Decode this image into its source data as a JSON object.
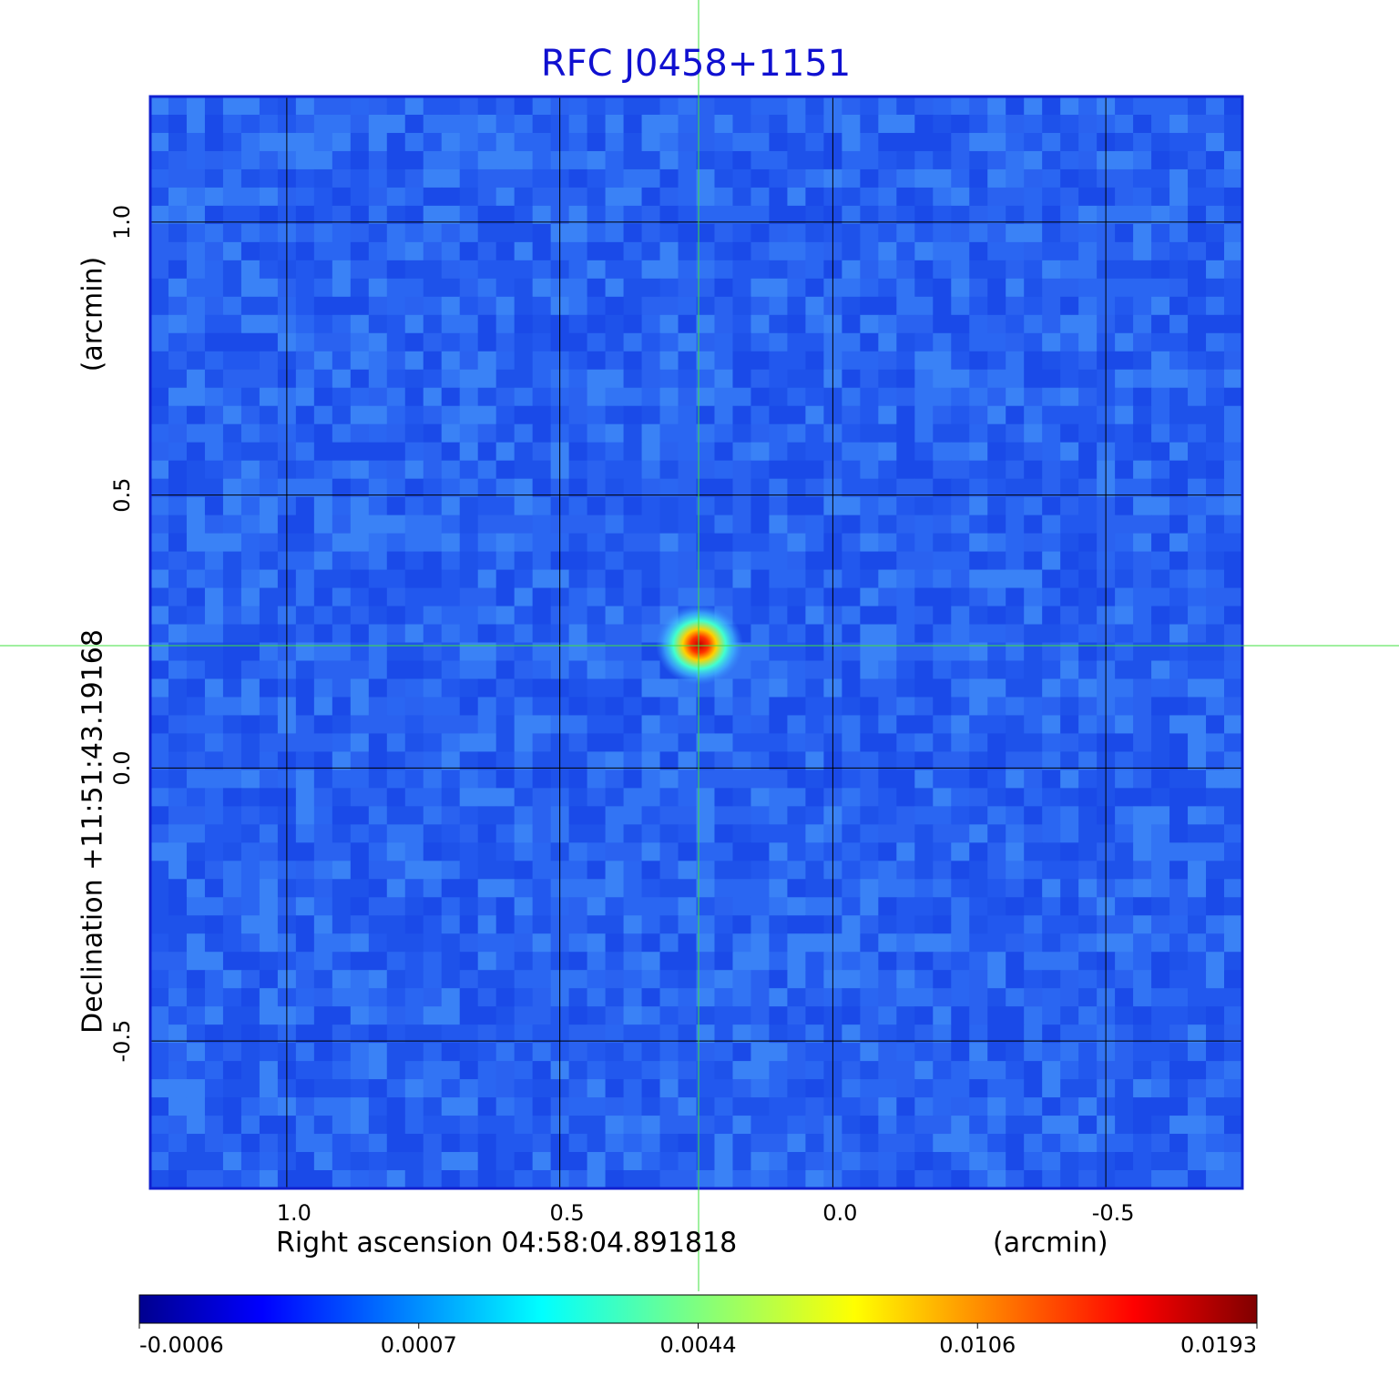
{
  "chart_data": {
    "type": "image",
    "title": "RFC J0458+1151",
    "x_label": "Right ascension  04:58:04.891818",
    "x_unit": "(arcmin)",
    "y_label": "Declination  +11:51:43.19168",
    "y_unit": "(arcmin)",
    "xlim": [
      1.25,
      -0.75
    ],
    "ylim": [
      -0.77,
      1.23
    ],
    "xticks": [
      {
        "value": 1,
        "label": "1.0"
      },
      0.5,
      {
        "value": 0,
        "label": "0.0"
      },
      -0.5
    ],
    "yticks": [
      {
        "value": 1,
        "label": "1.0"
      },
      0.5,
      {
        "value": 0,
        "label": "0.0"
      },
      -0.5
    ],
    "grid": true,
    "colormap": "jet",
    "colorbar_ticks": [
      -0.0006,
      0.0007,
      0.0044,
      0.0106,
      0.0193
    ]
  }
}
